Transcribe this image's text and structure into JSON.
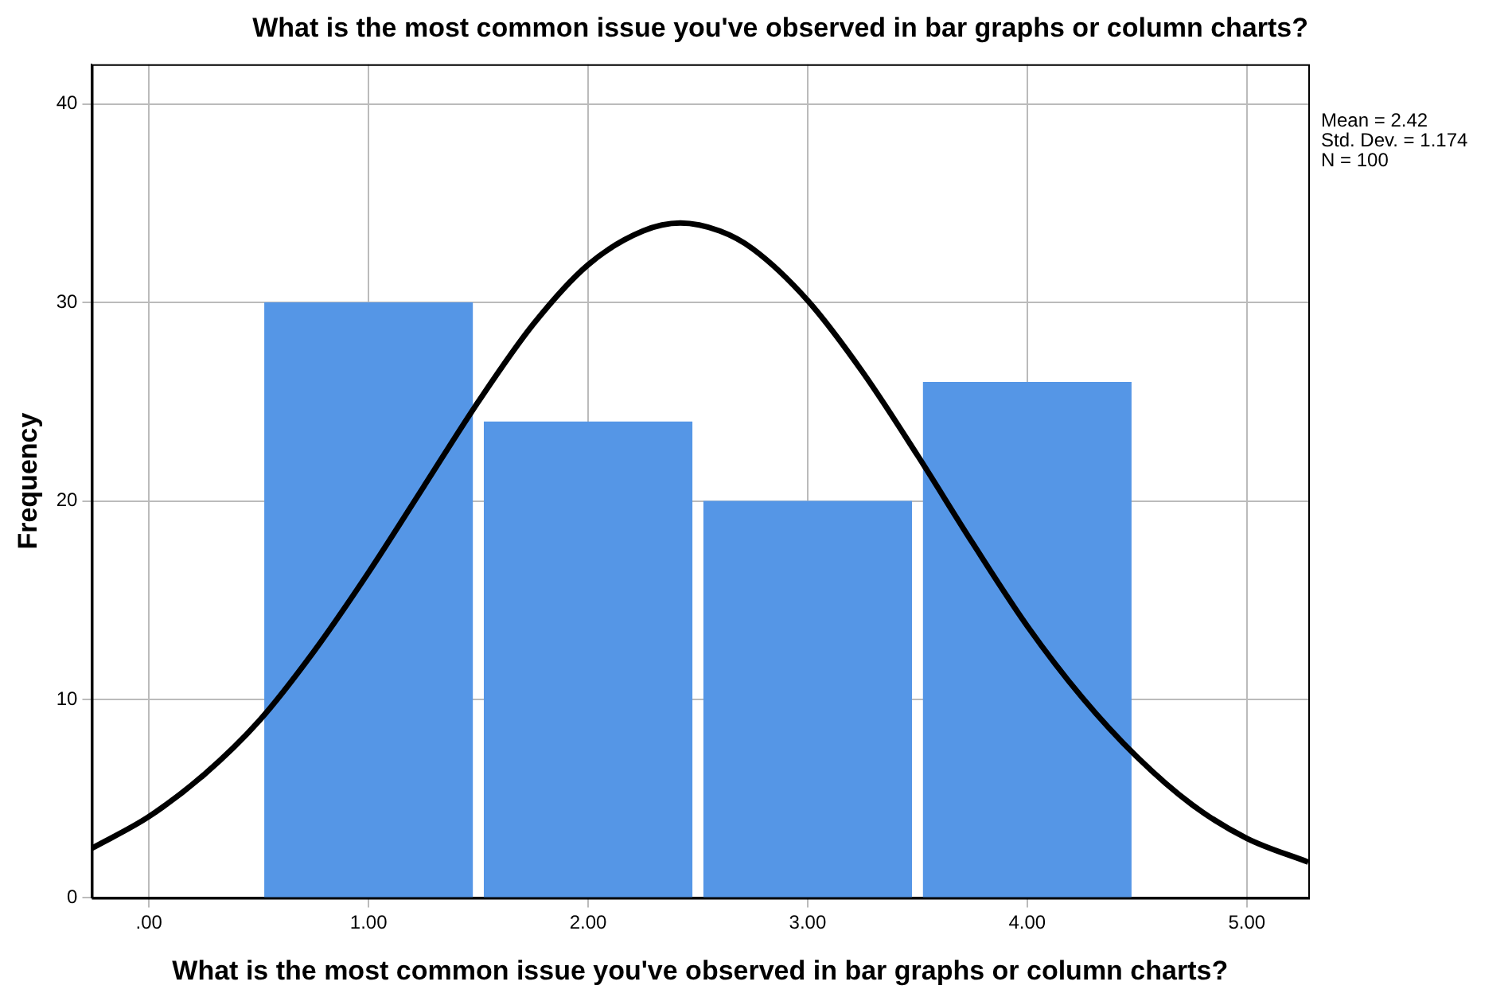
{
  "chart_data": {
    "type": "histogram",
    "title": "What is the most common issue you've observed in bar graphs or column charts?",
    "xlabel": "What is the most common issue you've observed in bar graphs or column charts?",
    "ylabel": "Frequency",
    "bins": [
      0.5,
      1.5,
      2.5,
      3.5,
      4.5
    ],
    "values": [
      30,
      24,
      20,
      26
    ],
    "color": "#5596e6",
    "series": [
      {
        "type": "line",
        "color": "#000000",
        "x": [
          -0.26,
          0,
          0.25,
          0.5,
          0.75,
          1,
          1.25,
          1.5,
          1.75,
          2,
          2.25,
          2.42,
          2.6,
          2.75,
          3,
          3.25,
          3.5,
          3.75,
          4,
          4.25,
          4.5,
          4.75,
          5,
          5.28
        ],
        "values": [
          2.5,
          4.1,
          6.2,
          8.9,
          12.4,
          16.4,
          20.7,
          25.0,
          28.9,
          31.9,
          33.6,
          34.0,
          33.6,
          32.7,
          30.1,
          26.5,
          22.3,
          17.9,
          13.7,
          10.1,
          7.1,
          4.7,
          3.0,
          1.8
        ]
      }
    ],
    "xlim": [
      -0.26,
      5.28
    ],
    "xticks": [
      {
        "value": 0,
        "label": ".00"
      },
      {
        "value": 1,
        "label": "1.00"
      },
      {
        "value": 2,
        "label": "2.00"
      },
      {
        "value": 3,
        "label": "3.00"
      },
      {
        "value": 4,
        "label": "4.00"
      },
      {
        "value": 5,
        "label": "5.00"
      }
    ],
    "ylim": [
      0,
      42
    ],
    "yticks": [
      0,
      10,
      20,
      30,
      40
    ],
    "grid": true,
    "legend": false,
    "marker": "none",
    "line_style": "solid",
    "annotations": [
      "Mean = 2.42",
      "Std. Dev. = 1.174",
      "N = 100"
    ]
  }
}
